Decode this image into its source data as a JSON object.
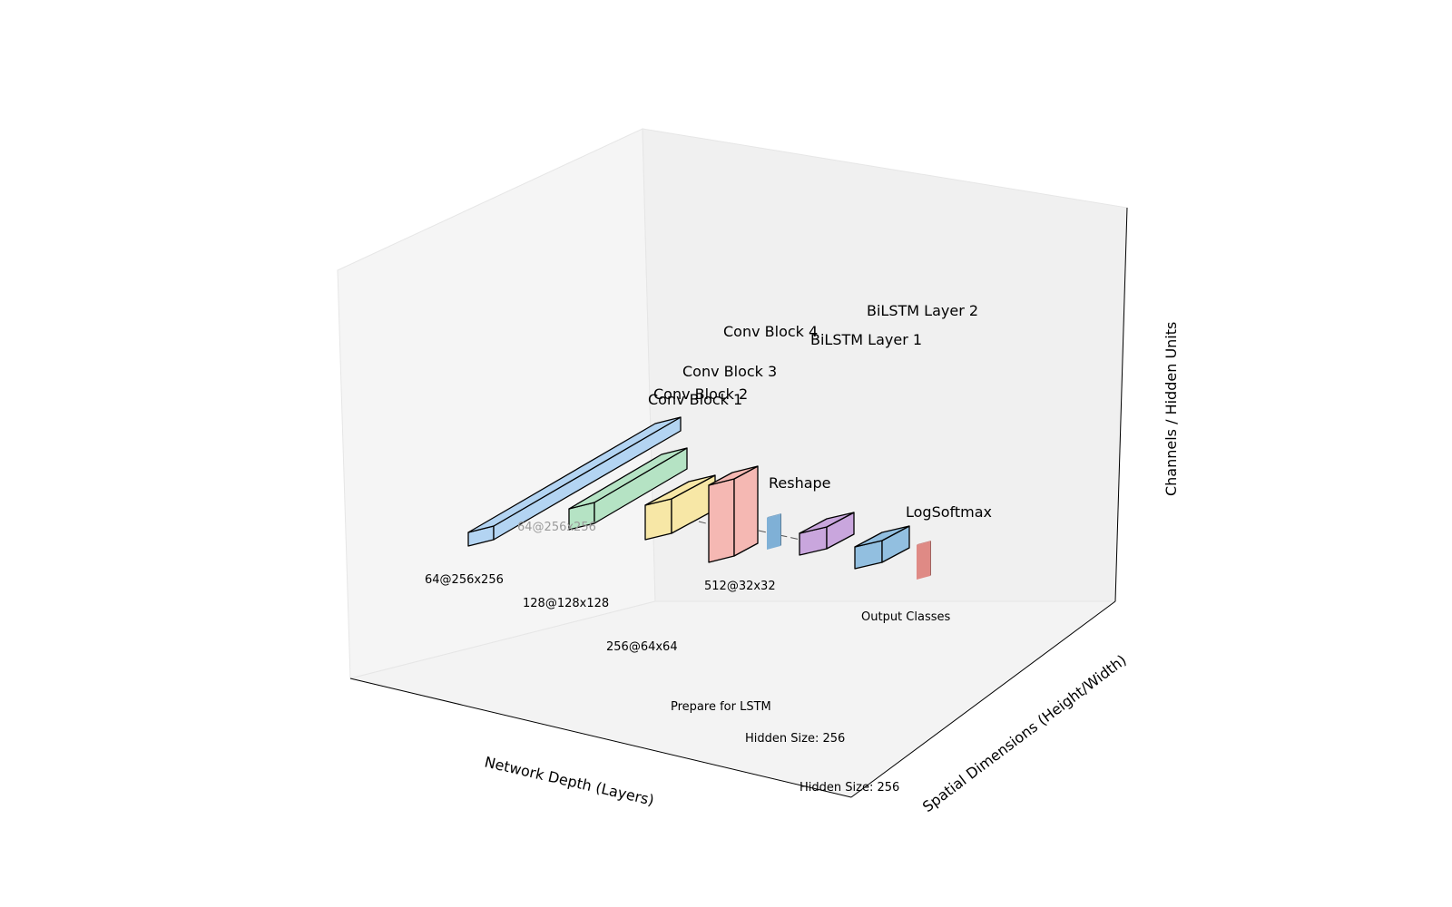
{
  "axes": {
    "x_label": "Network Depth (Layers)",
    "y_label": "Spatial Dimensions (Height/Width)",
    "z_label": "Channels / Hidden Units"
  },
  "layers": [
    {
      "id": "conv1",
      "title": "Conv Block 1",
      "dim_label": "64@256x256",
      "color": "#b3d4f2"
    },
    {
      "id": "conv2",
      "title": "Conv Block 2",
      "dim_label": "128@128x128",
      "color": "#b5e3c4"
    },
    {
      "id": "conv3",
      "title": "Conv Block 3",
      "dim_label": "256@64x64",
      "color": "#f7e7a6"
    },
    {
      "id": "conv4",
      "title": "Conv Block 4",
      "dim_label": "512@32x32",
      "color": "#f5b8b3"
    },
    {
      "id": "reshape",
      "title": "Reshape",
      "dim_label": "Prepare for LSTM",
      "color": "#7fb0d6"
    },
    {
      "id": "bilstm1",
      "title": "BiLSTM Layer 1",
      "dim_label": "Hidden Size: 256",
      "color": "#c9a6dd"
    },
    {
      "id": "bilstm2",
      "title": "BiLSTM Layer 2",
      "dim_label": "Hidden Size: 256",
      "color": "#92bfe0"
    },
    {
      "id": "logsoftmax",
      "title": "LogSoftmax",
      "dim_label": "Output Classes",
      "color": "#df8a85"
    }
  ],
  "inner_faint_label": "64@256x256"
}
